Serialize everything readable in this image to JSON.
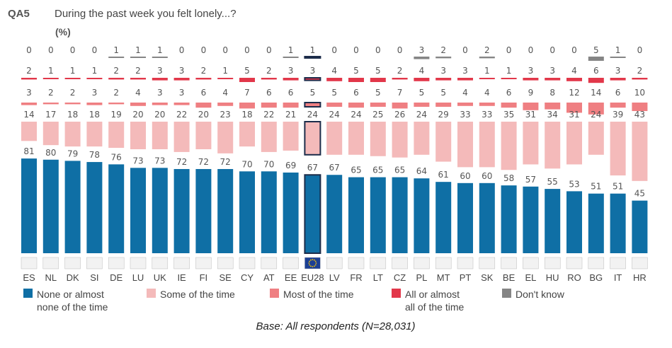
{
  "chart_data": {
    "type": "bar",
    "question_code": "QA5",
    "title": "During the past week you felt lonely...?",
    "unit": "(%)",
    "base": "Base: All respondents (N=28,031)",
    "highlight": "EU28",
    "categories": [
      "ES",
      "NL",
      "DK",
      "SI",
      "DE",
      "LU",
      "UK",
      "IE",
      "FI",
      "SE",
      "CY",
      "AT",
      "EE",
      "EU28",
      "LV",
      "FR",
      "LT",
      "CZ",
      "PL",
      "MT",
      "PT",
      "SK",
      "BE",
      "EL",
      "HU",
      "RO",
      "BG",
      "IT",
      "HR"
    ],
    "series": [
      {
        "key": "none",
        "name": "None or almost none of the time",
        "legend_lines": [
          "None or almost",
          "none of the time"
        ],
        "color": "#0f6fa5",
        "values": [
          81,
          80,
          79,
          78,
          76,
          73,
          73,
          72,
          72,
          72,
          70,
          70,
          69,
          67,
          67,
          65,
          65,
          65,
          64,
          61,
          60,
          60,
          58,
          57,
          55,
          53,
          51,
          51,
          45
        ]
      },
      {
        "key": "some",
        "name": "Some of the time",
        "legend_lines": [
          "Some of the time"
        ],
        "color": "#f4baba",
        "values": [
          14,
          17,
          18,
          18,
          19,
          20,
          20,
          22,
          20,
          23,
          18,
          22,
          21,
          24,
          24,
          24,
          25,
          26,
          24,
          29,
          33,
          33,
          35,
          31,
          34,
          31,
          24,
          39,
          43
        ]
      },
      {
        "key": "most",
        "name": "Most of the time",
        "legend_lines": [
          "Most of the time"
        ],
        "color": "#ef7f82",
        "values": [
          3,
          2,
          2,
          3,
          2,
          4,
          3,
          3,
          6,
          4,
          7,
          6,
          6,
          5,
          5,
          6,
          5,
          7,
          5,
          5,
          4,
          4,
          6,
          9,
          8,
          12,
          14,
          6,
          10
        ]
      },
      {
        "key": "all",
        "name": "All or almost all of the time",
        "legend_lines": [
          "All or almost",
          "all of the time"
        ],
        "color": "#e2374a",
        "values": [
          2,
          1,
          1,
          1,
          2,
          2,
          3,
          3,
          2,
          1,
          5,
          2,
          3,
          3,
          4,
          5,
          5,
          2,
          4,
          3,
          3,
          1,
          1,
          3,
          3,
          4,
          6,
          3,
          2
        ]
      },
      {
        "key": "dk",
        "name": "Don't know",
        "legend_lines": [
          "Don't know"
        ],
        "color": "#858585",
        "values": [
          0,
          0,
          0,
          0,
          1,
          1,
          1,
          0,
          0,
          0,
          0,
          0,
          1,
          1,
          0,
          0,
          0,
          0,
          3,
          2,
          0,
          2,
          0,
          0,
          0,
          0,
          5,
          1,
          0
        ]
      }
    ]
  }
}
